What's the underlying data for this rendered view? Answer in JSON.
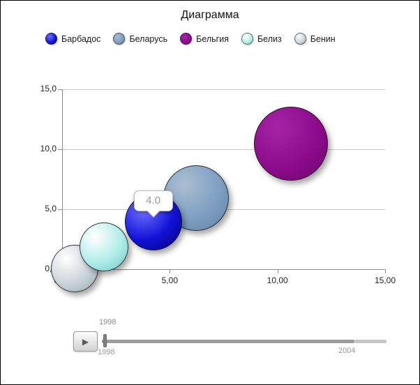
{
  "title": "Диаграмма",
  "tooltip": {
    "text": "4,0",
    "target": "Барбадос"
  },
  "timeline": {
    "play_icon": "▶",
    "current_label": "1998",
    "start_label": "1998",
    "end_label": "2004"
  },
  "chart_data": {
    "type": "scatter",
    "subtype": "bubble",
    "title": "Диаграмма",
    "xlabel": "",
    "ylabel": "",
    "xlim": [
      0,
      15
    ],
    "ylim": [
      0,
      15
    ],
    "grid": "horizontal",
    "legend_position": "top",
    "x_ticks": [
      "0,00",
      "5,00",
      "10,00",
      "15,00"
    ],
    "x_tick_values": [
      0,
      5,
      10,
      15
    ],
    "y_ticks": [
      "0,0",
      "5,0",
      "10,0",
      "15,0"
    ],
    "y_tick_values": [
      0,
      5,
      10,
      15
    ],
    "series": [
      {
        "name": "Барбадос",
        "x": 4.2,
        "y": 4.0,
        "radius_px": 40,
        "z": 4,
        "color": "#1212d6",
        "gradient": [
          "#7070ff",
          "#1212d6",
          "#000070"
        ]
      },
      {
        "name": "Беларусь",
        "x": 6.2,
        "y": 6.0,
        "radius_px": 46,
        "z": 3,
        "color": "#7f9fc2",
        "gradient": [
          "#a9bed2",
          "#7f9fc2",
          "#60819f"
        ]
      },
      {
        "name": "Бельгия",
        "x": 10.6,
        "y": 10.5,
        "radius_px": 52,
        "z": 5,
        "color": "#8c0c8c",
        "gradient": [
          "#a623a6",
          "#8c0c8c",
          "#700070"
        ]
      },
      {
        "name": "Белиз",
        "x": 1.9,
        "y": 1.9,
        "radius_px": 34,
        "z": 2,
        "color": "#8adcd6",
        "gradient": [
          "#ffffff",
          "#b2ece8",
          "#6cc8c4"
        ]
      },
      {
        "name": "Бенин",
        "x": 0.55,
        "y": 0.1,
        "radius_px": 33,
        "z": 1,
        "color": "#c4cdd6",
        "gradient": [
          "#ffffff",
          "#ccd3da",
          "#9aa5b0"
        ]
      }
    ],
    "annotation": {
      "text": "4,0",
      "series": "Барбадос"
    }
  }
}
